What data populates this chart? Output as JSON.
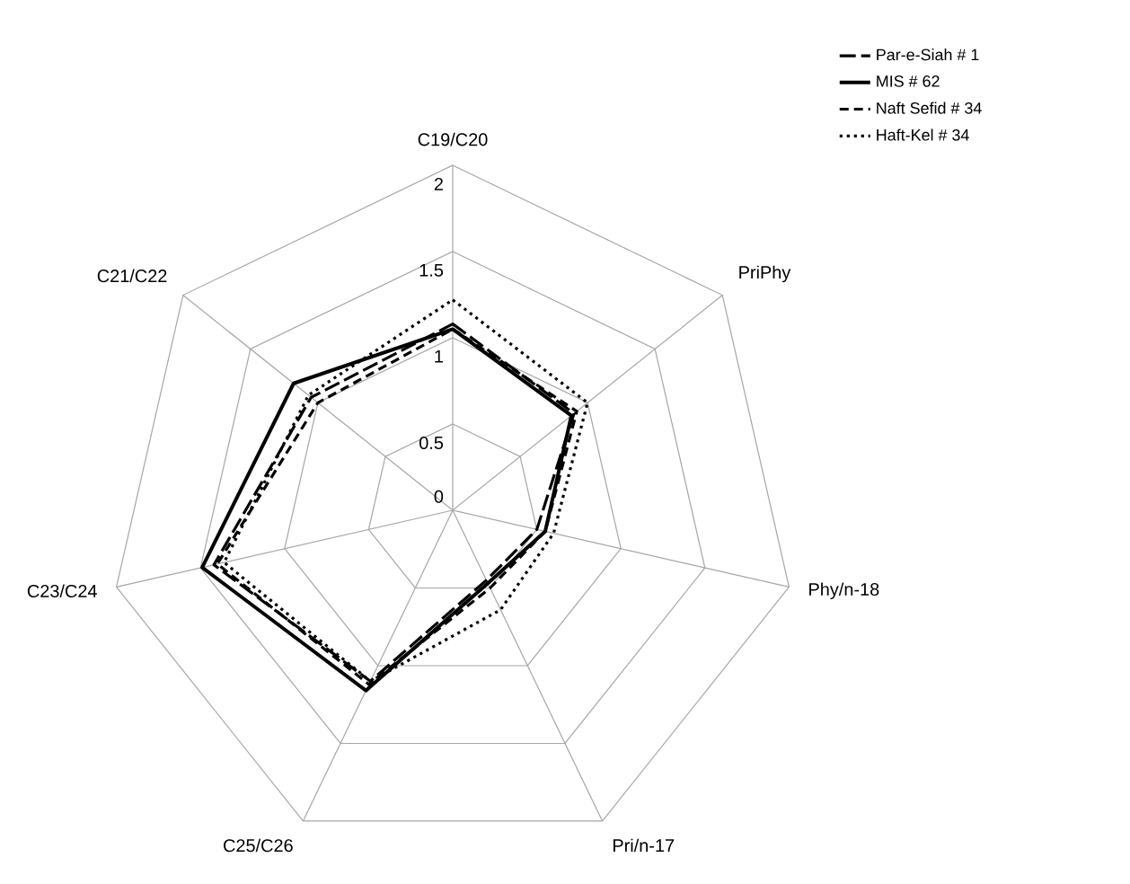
{
  "chart_data": {
    "type": "radar",
    "categories": [
      "C19/C20",
      "PriPhy",
      "Phy/n-18",
      "Pri/n-17",
      "C25/C26",
      "C23/C24",
      "C21/C22"
    ],
    "ylim": [
      0,
      2
    ],
    "yticks": [
      0,
      0.5,
      1,
      1.5,
      2
    ],
    "grid": true,
    "legend": "top right",
    "series": [
      {
        "name": "Par-e-Siah # 1",
        "color": "#000000",
        "line_style": "dashed",
        "values": [
          1.08,
          0.9,
          0.5,
          0.45,
          1.1,
          1.42,
          1.05
        ]
      },
      {
        "name": "MIS # 62",
        "color": "#000000",
        "line_style": "solid",
        "values": [
          1.05,
          0.88,
          0.55,
          0.47,
          1.16,
          1.49,
          1.18
        ]
      },
      {
        "name": "Naft Sefid # 34",
        "color": "#000000",
        "line_style": "dashed",
        "values": [
          1.05,
          0.92,
          0.55,
          0.5,
          1.12,
          1.4,
          1.0
        ]
      },
      {
        "name": "Haft-Kel # 34",
        "color": "#000000",
        "line_style": "dotted",
        "values": [
          1.22,
          1.0,
          0.6,
          0.64,
          1.1,
          1.36,
          1.07
        ]
      }
    ]
  }
}
